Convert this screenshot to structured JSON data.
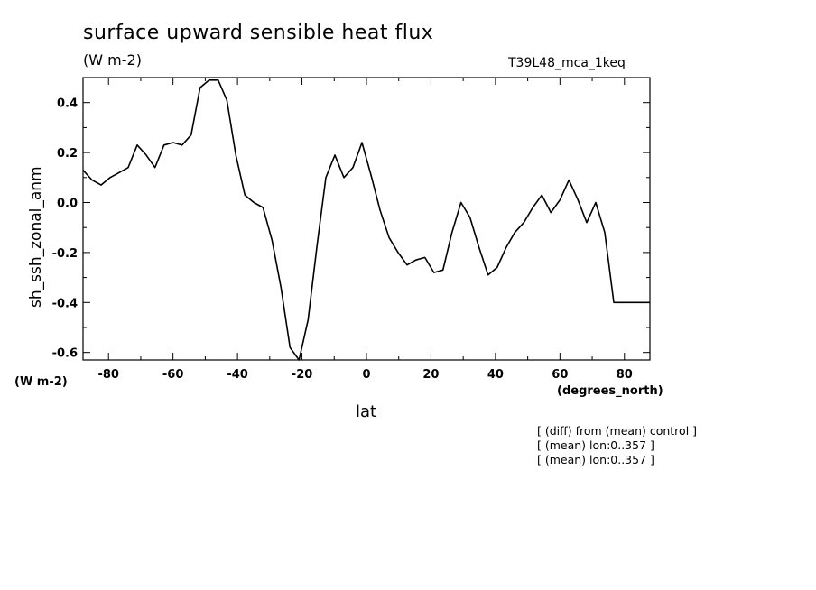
{
  "header": {
    "title": "surface upward sensible heat flux",
    "units": "(W m-2)",
    "run_id": "T39L48_mca_1keq"
  },
  "axes": {
    "y_units": "(W m-2)",
    "x_units": "(degrees_north)"
  },
  "notes": [
    "[ (diff) from (mean) control ]",
    "[ (mean) lon:0..357 ]",
    "[ (mean) lon:0..357 ]"
  ],
  "chart_data": {
    "type": "line",
    "title": "surface upward sensible heat flux",
    "xlabel": "lat",
    "ylabel": "sh_ssh_zonal_anm",
    "xlim": [
      -87.9,
      87.9
    ],
    "ylim": [
      -0.63,
      0.5
    ],
    "xticks": [
      -80,
      -60,
      -40,
      -20,
      0,
      20,
      40,
      60,
      80
    ],
    "xtick_labels": [
      "-80",
      "-60",
      "-40",
      "-20",
      "0",
      "20",
      "40",
      "60",
      "80"
    ],
    "yticks": [
      -0.6,
      -0.4,
      -0.2,
      0.0,
      0.2,
      0.4
    ],
    "ytick_labels": [
      "-0.6",
      "-0.4",
      "-0.2",
      "0.0",
      "0.2",
      "0.4"
    ],
    "grid": false,
    "line_color": "#000000",
    "series": [
      {
        "x": [
          -87.9,
          -85.1,
          -82.3,
          -79.5,
          -76.7,
          -73.9,
          -71.1,
          -68.3,
          -65.6,
          -62.8,
          -60.0,
          -57.2,
          -54.4,
          -51.6,
          -48.8,
          -46.0,
          -43.3,
          -40.5,
          -37.7,
          -34.9,
          -32.1,
          -29.3,
          -26.5,
          -23.7,
          -20.9,
          -18.1,
          -15.3,
          -12.6,
          -9.8,
          -7.0,
          -4.2,
          -1.4,
          1.4,
          4.2,
          7.0,
          9.8,
          12.6,
          15.3,
          18.1,
          20.9,
          23.7,
          26.5,
          29.3,
          32.1,
          34.9,
          37.7,
          40.5,
          43.3,
          46.0,
          48.8,
          51.6,
          54.4,
          57.2,
          60.0,
          62.8,
          65.6,
          68.3,
          71.1,
          73.9,
          76.7,
          79.5,
          82.3,
          85.1,
          87.9
        ],
        "values": [
          0.13,
          0.09,
          0.07,
          0.1,
          0.12,
          0.14,
          0.23,
          0.19,
          0.14,
          0.23,
          0.24,
          0.23,
          0.27,
          0.46,
          0.49,
          0.49,
          0.41,
          0.19,
          0.03,
          0.0,
          -0.02,
          -0.15,
          -0.34,
          -0.58,
          -0.63,
          -0.47,
          -0.17,
          0.1,
          0.19,
          0.1,
          0.14,
          0.24,
          0.11,
          -0.03,
          -0.14,
          -0.2,
          -0.25,
          -0.23,
          -0.22,
          -0.28,
          -0.27,
          -0.12,
          0.0,
          -0.06,
          -0.18,
          -0.29,
          -0.26,
          -0.18,
          -0.12,
          -0.08,
          -0.02,
          0.03,
          -0.04,
          0.01,
          0.09,
          0.01,
          -0.08,
          0.0,
          -0.12,
          -0.4,
          -0.4,
          -0.4,
          -0.4,
          -0.4
        ]
      }
    ]
  }
}
